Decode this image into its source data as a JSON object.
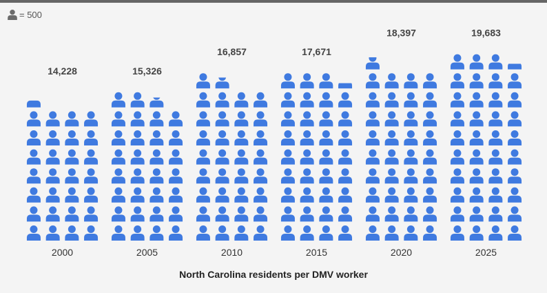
{
  "legend": {
    "icon": "person-icon",
    "label": "= 500"
  },
  "chart_data": {
    "type": "pictogram",
    "unit_per_icon": 500,
    "icons_per_row": 4,
    "categories": [
      "2000",
      "2005",
      "2010",
      "2015",
      "2020",
      "2025"
    ],
    "values": [
      14228,
      15326,
      16857,
      17671,
      18397,
      19683
    ],
    "value_labels": [
      "14,228",
      "15,326",
      "16,857",
      "17,671",
      "18,397",
      "19,683"
    ],
    "xlabel": "North Carolina residents per DMV worker",
    "icon_color": "#3f7ae0",
    "legend_icon_color": "#6b6b6b"
  }
}
